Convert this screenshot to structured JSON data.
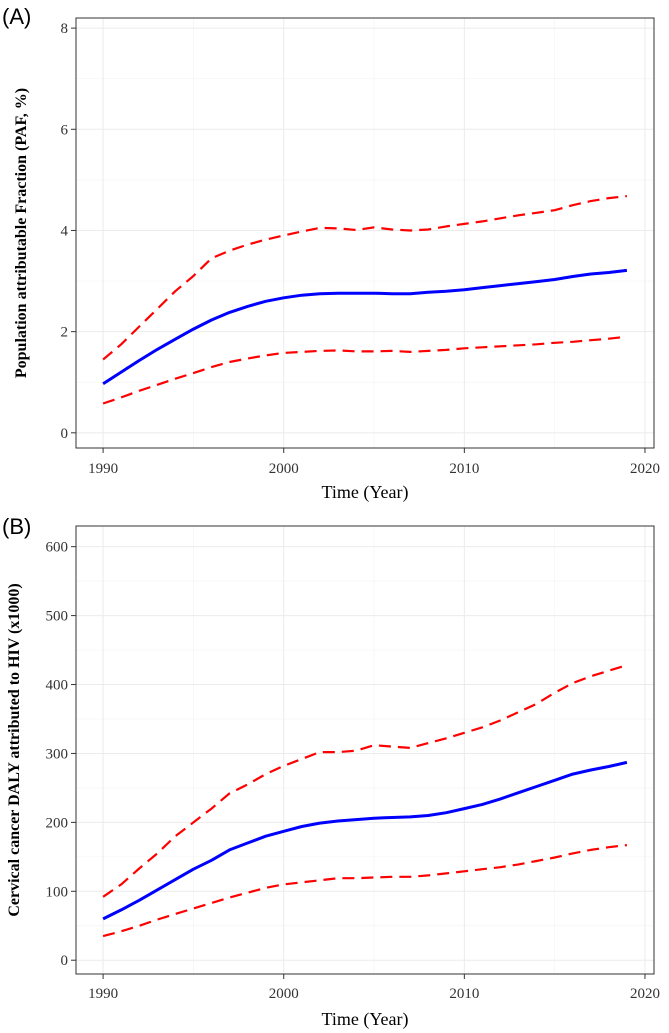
{
  "chart_data": [
    {
      "panel_label": "(A)",
      "type": "line",
      "xlabel": "Time (Year)",
      "ylabel": "Population attributable Fraction (PAF, %)",
      "xlim": [
        1988.5,
        2020.5
      ],
      "ylim": [
        -0.3,
        8.2
      ],
      "xticks": [
        1990,
        2000,
        2010,
        2020
      ],
      "yticks": [
        0,
        2,
        4,
        6,
        8
      ],
      "grid": true,
      "legend": "none",
      "x": [
        1990,
        1991,
        1992,
        1993,
        1994,
        1995,
        1996,
        1997,
        1998,
        1999,
        2000,
        2001,
        2002,
        2003,
        2004,
        2005,
        2006,
        2007,
        2008,
        2009,
        2010,
        2011,
        2012,
        2013,
        2014,
        2015,
        2016,
        2017,
        2018,
        2019
      ],
      "series": [
        {
          "color": "#ff0000",
          "style": "dashed",
          "values": [
            1.45,
            1.75,
            2.1,
            2.45,
            2.8,
            3.1,
            3.45,
            3.6,
            3.72,
            3.82,
            3.9,
            3.98,
            4.05,
            4.04,
            4.01,
            4.06,
            4.02,
            4.0,
            4.02,
            4.08,
            4.13,
            4.18,
            4.24,
            4.3,
            4.35,
            4.4,
            4.5,
            4.58,
            4.64,
            4.68
          ]
        },
        {
          "color": "#0000ff",
          "style": "solid",
          "values": [
            0.97,
            1.2,
            1.43,
            1.65,
            1.85,
            2.05,
            2.23,
            2.38,
            2.5,
            2.6,
            2.67,
            2.72,
            2.75,
            2.76,
            2.76,
            2.76,
            2.75,
            2.75,
            2.78,
            2.8,
            2.83,
            2.87,
            2.91,
            2.95,
            2.99,
            3.03,
            3.09,
            3.14,
            3.17,
            3.21
          ]
        },
        {
          "color": "#ff0000",
          "style": "dashed",
          "values": [
            0.58,
            0.7,
            0.83,
            0.95,
            1.07,
            1.18,
            1.3,
            1.4,
            1.47,
            1.53,
            1.58,
            1.6,
            1.62,
            1.63,
            1.61,
            1.61,
            1.62,
            1.6,
            1.62,
            1.64,
            1.67,
            1.69,
            1.71,
            1.73,
            1.75,
            1.78,
            1.8,
            1.83,
            1.86,
            1.9
          ]
        }
      ]
    },
    {
      "panel_label": "(B)",
      "type": "line",
      "xlabel": "Time (Year)",
      "ylabel": "Cervical cancer DALY attributed to HIV  (x1000)",
      "xlim": [
        1988.5,
        2020.5
      ],
      "ylim": [
        -20,
        630
      ],
      "xticks": [
        1990,
        2000,
        2010,
        2020
      ],
      "yticks": [
        0,
        100,
        200,
        300,
        400,
        500,
        600
      ],
      "grid": true,
      "legend": "none",
      "x": [
        1990,
        1991,
        1992,
        1993,
        1994,
        1995,
        1996,
        1997,
        1998,
        1999,
        2000,
        2001,
        2002,
        2003,
        2004,
        2005,
        2006,
        2007,
        2008,
        2009,
        2010,
        2011,
        2012,
        2013,
        2014,
        2015,
        2016,
        2017,
        2018,
        2019
      ],
      "series": [
        {
          "color": "#ff0000",
          "style": "dashed",
          "values": [
            92,
            110,
            133,
            155,
            180,
            200,
            220,
            242,
            255,
            270,
            282,
            292,
            302,
            302,
            304,
            312,
            310,
            308,
            315,
            322,
            330,
            338,
            348,
            360,
            372,
            388,
            402,
            412,
            420,
            428
          ]
        },
        {
          "color": "#0000ff",
          "style": "solid",
          "values": [
            60,
            73,
            87,
            102,
            117,
            132,
            145,
            160,
            170,
            180,
            187,
            194,
            199,
            202,
            204,
            206,
            207,
            208,
            210,
            214,
            220,
            226,
            234,
            243,
            252,
            261,
            270,
            276,
            281,
            287
          ]
        },
        {
          "color": "#ff0000",
          "style": "dashed",
          "values": [
            35,
            42,
            50,
            59,
            67,
            75,
            83,
            91,
            98,
            105,
            110,
            113,
            116,
            119,
            119,
            120,
            121,
            121,
            123,
            126,
            129,
            132,
            135,
            139,
            144,
            149,
            155,
            160,
            164,
            167
          ]
        }
      ]
    }
  ]
}
